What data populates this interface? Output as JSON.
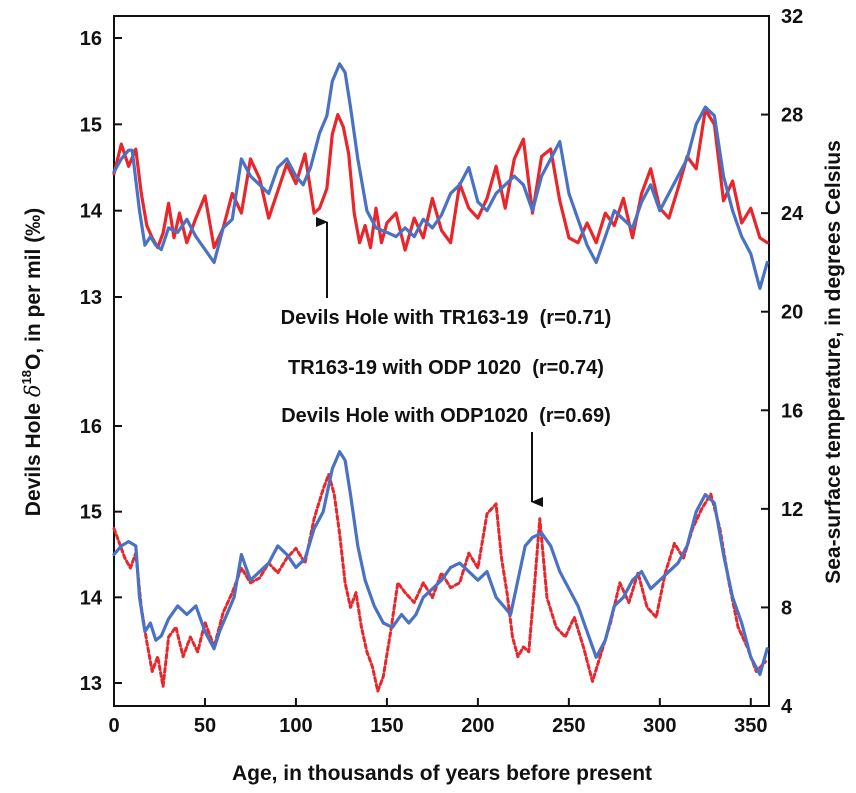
{
  "chart_data": {
    "type": "line",
    "xlabel": "Age, in thousands of years before present",
    "ylabel_left_prefix": "Devils Hole ",
    "ylabel_left_delta": "δ",
    "ylabel_left_sup": "18",
    "ylabel_left_suffix": "O, in per mil (‰)",
    "ylabel_right": "Sea-surface temperature, in degrees Celsius",
    "xlim": [
      0,
      360
    ],
    "x_ticks": [
      0,
      50,
      100,
      150,
      200,
      250,
      300,
      350
    ],
    "left_ticks_upper": [
      13,
      14,
      15,
      16
    ],
    "left_ticks_lower": [
      13,
      14,
      15,
      16
    ],
    "right_ticks": [
      4,
      8,
      12,
      16,
      20,
      24,
      28,
      32
    ],
    "legend": "none",
    "annotations": [
      {
        "text": "Devils Hole with TR163-19  (r=0.71)"
      },
      {
        "text": "TR163-19 with ODP 1020  (r=0.74)"
      },
      {
        "text": "Devils Hole with ODP1020  (r=0.69)"
      }
    ],
    "arrows": [
      {
        "x": 113,
        "points_to": "upper-panel"
      },
      {
        "x": 228,
        "points_to": "lower-panel"
      }
    ],
    "panels": [
      {
        "name": "upper",
        "ylim_left": [
          13,
          16
        ],
        "series": [
          {
            "color": "#e8262b",
            "style": "solid",
            "axis": "right",
            "x": [
              0,
              4,
              8,
              12,
              15,
              18,
              21,
              24,
              27,
              30,
              33,
              36,
              40,
              45,
              50,
              55,
              60,
              65,
              70,
              75,
              80,
              85,
              90,
              95,
              100,
              105,
              110,
              113,
              117,
              120,
              123,
              126,
              129,
              132,
              135,
              138,
              141,
              144,
              147,
              150,
              155,
              160,
              165,
              170,
              175,
              180,
              185,
              190,
              195,
              200,
              205,
              210,
              215,
              220,
              225,
              230,
              235,
              240,
              245,
              250,
              255,
              260,
              265,
              270,
              275,
              280,
              285,
              290,
              295,
              300,
              305,
              310,
              315,
              320,
              325,
              330,
              335,
              340,
              345,
              350,
              355,
              359
            ],
            "y": [
              25.6,
              26.8,
              25.9,
              26.6,
              24.8,
              23.5,
              23.0,
              22.6,
              23.2,
              24.4,
              23.0,
              24.0,
              22.8,
              23.8,
              24.7,
              22.6,
              23.4,
              24.8,
              24.0,
              26.2,
              25.4,
              23.8,
              24.9,
              26.0,
              25.2,
              26.4,
              24.0,
              24.2,
              25.0,
              27.2,
              28.0,
              27.5,
              26.4,
              24.0,
              22.8,
              23.5,
              22.6,
              24.2,
              22.8,
              23.6,
              24.0,
              22.5,
              23.8,
              23.0,
              24.6,
              23.3,
              22.8,
              25.2,
              24.2,
              23.8,
              24.6,
              25.9,
              24.2,
              26.2,
              27.0,
              24.0,
              26.3,
              26.6,
              24.5,
              23.0,
              22.8,
              23.6,
              22.8,
              24.0,
              23.5,
              24.6,
              23.0,
              24.8,
              25.8,
              24.2,
              23.8,
              25.0,
              26.3,
              25.8,
              28.2,
              27.6,
              24.5,
              25.3,
              23.6,
              24.2,
              23.0,
              22.8
            ]
          },
          {
            "color": "#4a72c4",
            "style": "solid",
            "axis": "left",
            "x": [
              0,
              4,
              8,
              10,
              14,
              17,
              20,
              23,
              26,
              30,
              35,
              40,
              45,
              50,
              55,
              60,
              65,
              70,
              75,
              80,
              85,
              90,
              95,
              100,
              104,
              108,
              113,
              117,
              120,
              124,
              127,
              130,
              134,
              139,
              144,
              150,
              155,
              160,
              165,
              170,
              175,
              180,
              185,
              190,
              195,
              200,
              205,
              210,
              215,
              220,
              225,
              230,
              235,
              240,
              245,
              250,
              255,
              260,
              265,
              270,
              275,
              280,
              285,
              290,
              295,
              300,
              305,
              310,
              315,
              320,
              325,
              330,
              335,
              340,
              345,
              350,
              355,
              359
            ],
            "y": [
              14.45,
              14.6,
              14.7,
              14.7,
              14.0,
              13.6,
              13.7,
              13.6,
              13.55,
              13.8,
              13.75,
              13.9,
              13.7,
              13.55,
              13.4,
              13.8,
              13.9,
              14.6,
              14.4,
              14.3,
              14.2,
              14.5,
              14.6,
              14.4,
              14.3,
              14.5,
              14.9,
              15.1,
              15.5,
              15.7,
              15.6,
              15.2,
              14.6,
              14.0,
              13.8,
              13.75,
              13.7,
              13.8,
              13.7,
              13.9,
              13.8,
              13.95,
              14.2,
              14.3,
              14.5,
              14.1,
              14.0,
              14.2,
              14.3,
              14.4,
              14.3,
              14.0,
              14.4,
              14.6,
              14.8,
              14.2,
              13.9,
              13.6,
              13.4,
              13.7,
              14.0,
              13.9,
              13.8,
              14.1,
              14.3,
              14.0,
              14.2,
              14.4,
              14.6,
              15.0,
              15.2,
              15.1,
              14.4,
              14.0,
              13.7,
              13.5,
              13.1,
              13.4
            ]
          }
        ]
      },
      {
        "name": "lower",
        "ylim_left": [
          13,
          16
        ],
        "series": [
          {
            "color": "#e8262b",
            "style": "dashed",
            "axis": "right",
            "x": [
              0,
              3,
              6,
              9,
              12,
              15,
              18,
              21,
              24,
              27,
              30,
              34,
              38,
              42,
              46,
              50,
              55,
              60,
              65,
              70,
              75,
              80,
              85,
              90,
              95,
              100,
              105,
              110,
              115,
              118,
              121,
              124,
              127,
              130,
              133,
              136,
              139,
              142,
              145,
              148,
              152,
              156,
              160,
              165,
              170,
              175,
              180,
              185,
              190,
              195,
              200,
              205,
              210,
              213,
              216,
              219,
              222,
              225,
              228,
              231,
              234,
              238,
              243,
              248,
              253,
              258,
              263,
              268,
              273,
              278,
              283,
              288,
              293,
              298,
              303,
              308,
              313,
              318,
              323,
              328,
              333,
              338,
              343,
              348,
              353,
              358
            ],
            "y": [
              11.2,
              10.6,
              10.0,
              9.6,
              10.2,
              8.0,
              6.6,
              5.4,
              6.0,
              4.8,
              6.8,
              7.2,
              6.0,
              6.8,
              6.2,
              7.4,
              6.4,
              7.8,
              8.6,
              9.6,
              9.0,
              9.2,
              9.8,
              9.4,
              10.0,
              10.4,
              9.8,
              11.6,
              12.8,
              13.4,
              12.6,
              11.0,
              9.0,
              8.0,
              8.6,
              7.2,
              6.2,
              5.6,
              4.6,
              5.2,
              7.0,
              9.0,
              8.6,
              8.2,
              9.0,
              8.4,
              9.4,
              8.8,
              9.0,
              10.2,
              9.6,
              11.8,
              12.2,
              10.0,
              8.6,
              6.8,
              6.0,
              6.4,
              6.2,
              8.8,
              11.6,
              8.4,
              7.2,
              6.8,
              7.6,
              6.4,
              5.0,
              6.2,
              7.4,
              9.0,
              8.2,
              9.4,
              8.0,
              7.6,
              9.4,
              10.6,
              10.0,
              11.2,
              12.0,
              12.6,
              11.2,
              9.0,
              7.2,
              6.4,
              5.4,
              5.8
            ]
          },
          {
            "color": "#4a72c4",
            "style": "solid",
            "axis": "left",
            "x": [
              0,
              4,
              8,
              12,
              14,
              17,
              20,
              23,
              26,
              30,
              35,
              40,
              45,
              50,
              55,
              58,
              62,
              66,
              70,
              75,
              80,
              85,
              90,
              95,
              100,
              105,
              110,
              115,
              120,
              124,
              127,
              130,
              134,
              138,
              143,
              148,
              153,
              158,
              162,
              166,
              170,
              175,
              180,
              185,
              190,
              195,
              200,
              205,
              210,
              214,
              218,
              222,
              226,
              230,
              235,
              240,
              245,
              250,
              255,
              260,
              265,
              270,
              275,
              280,
              285,
              290,
              295,
              300,
              305,
              310,
              315,
              320,
              325,
              330,
              335,
              340,
              345,
              350,
              355,
              359
            ],
            "y": [
              14.5,
              14.6,
              14.65,
              14.6,
              14.0,
              13.6,
              13.7,
              13.5,
              13.55,
              13.75,
              13.9,
              13.8,
              13.9,
              13.6,
              13.4,
              13.6,
              13.8,
              14.0,
              14.5,
              14.2,
              14.3,
              14.4,
              14.6,
              14.5,
              14.35,
              14.45,
              14.8,
              15.0,
              15.5,
              15.7,
              15.6,
              15.2,
              14.6,
              14.2,
              13.9,
              13.7,
              13.65,
              13.8,
              13.7,
              13.8,
              14.0,
              14.1,
              14.2,
              14.35,
              14.4,
              14.3,
              14.2,
              14.3,
              14.0,
              13.9,
              13.8,
              14.2,
              14.6,
              14.7,
              14.75,
              14.6,
              14.3,
              14.1,
              13.9,
              13.6,
              13.3,
              13.5,
              13.9,
              14.0,
              14.2,
              14.3,
              14.1,
              14.2,
              14.3,
              14.4,
              14.6,
              15.0,
              15.2,
              15.1,
              14.5,
              14.0,
              13.7,
              13.3,
              13.1,
              13.4
            ]
          }
        ]
      }
    ]
  }
}
